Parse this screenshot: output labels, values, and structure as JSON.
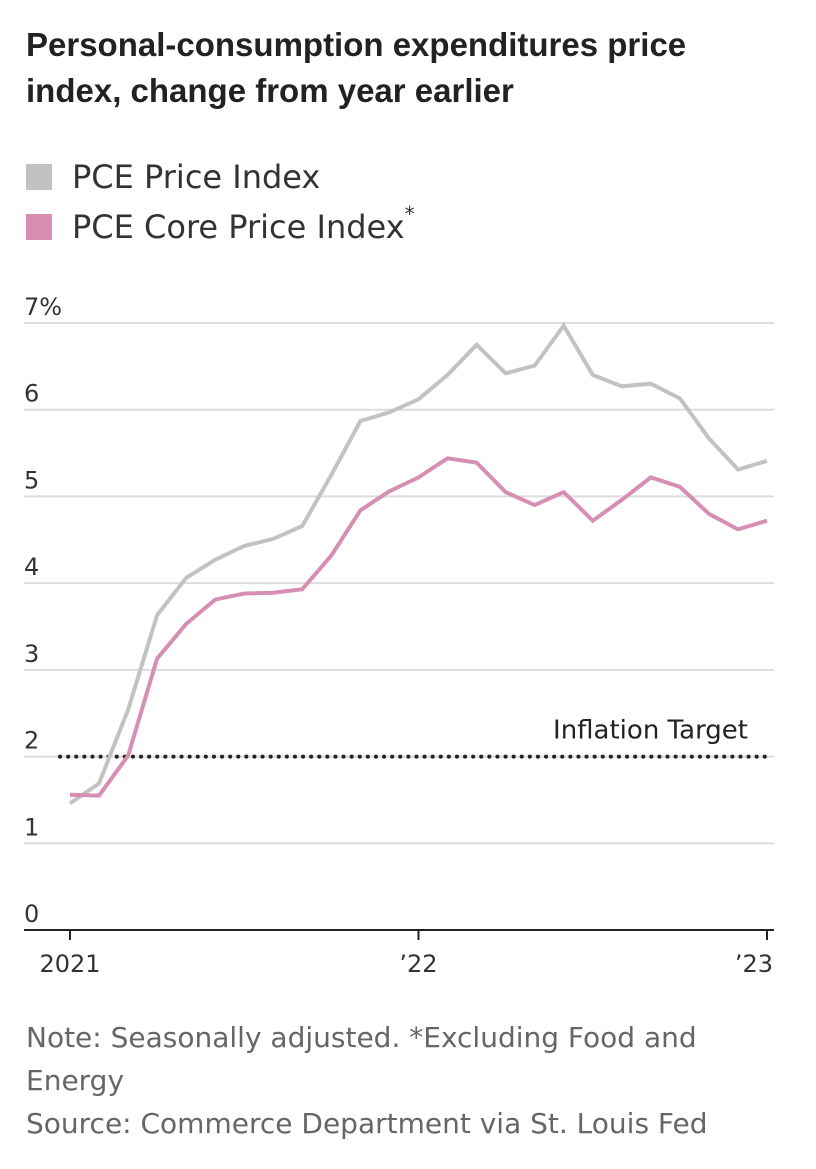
{
  "title": "Personal-consumption expenditures price index, change from year earlier",
  "legend": [
    {
      "label": "PCE Price Index",
      "suffix": "",
      "color": "#c2c2c2"
    },
    {
      "label": "PCE Core Price Index",
      "suffix": "*",
      "color": "#d68fb3"
    }
  ],
  "note": "Note: Seasonally adjusted. *Excluding Food and Energy",
  "source": "Source: Commerce Department via St. Louis Fed",
  "chart_data": {
    "type": "line",
    "title": "Personal-consumption expenditures price index, change from year earlier",
    "xlabel": "",
    "ylabel": "",
    "ylim": [
      0,
      7
    ],
    "yticks": [
      {
        "value": 7,
        "label": "7%"
      },
      {
        "value": 6,
        "label": "6"
      },
      {
        "value": 5,
        "label": "5"
      },
      {
        "value": 4,
        "label": "4"
      },
      {
        "value": 3,
        "label": "3"
      },
      {
        "value": 2,
        "label": "2"
      },
      {
        "value": 1,
        "label": "1"
      },
      {
        "value": 0,
        "label": "0"
      }
    ],
    "xticks": [
      {
        "index": 0,
        "label": "2021"
      },
      {
        "index": 12,
        "label": "’22"
      },
      {
        "index": 24,
        "label": "’23"
      }
    ],
    "grid": true,
    "x": [
      "2021-01",
      "2021-02",
      "2021-03",
      "2021-04",
      "2021-05",
      "2021-06",
      "2021-07",
      "2021-08",
      "2021-09",
      "2021-10",
      "2021-11",
      "2021-12",
      "2022-01",
      "2022-02",
      "2022-03",
      "2022-04",
      "2022-05",
      "2022-06",
      "2022-07",
      "2022-08",
      "2022-09",
      "2022-10",
      "2022-11",
      "2022-12",
      "2023-01"
    ],
    "series": [
      {
        "name": "PCE Price Index",
        "color": "#c2c2c2",
        "values": [
          1.46,
          1.69,
          2.54,
          3.63,
          4.06,
          4.27,
          4.43,
          4.51,
          4.66,
          5.25,
          5.87,
          5.97,
          6.12,
          6.4,
          6.75,
          6.42,
          6.51,
          6.97,
          6.4,
          6.27,
          6.3,
          6.13,
          5.67,
          5.31,
          5.41
        ]
      },
      {
        "name": "PCE Core Price Index",
        "color": "#d68fb3",
        "values": [
          1.56,
          1.55,
          2.01,
          3.13,
          3.53,
          3.81,
          3.88,
          3.89,
          3.93,
          4.32,
          4.84,
          5.06,
          5.22,
          5.44,
          5.39,
          5.05,
          4.9,
          5.05,
          4.72,
          4.96,
          5.22,
          5.11,
          4.8,
          4.62,
          4.72
        ]
      }
    ],
    "reference_line": {
      "value": 2,
      "label": "Inflation Target",
      "style": "dotted",
      "color": "#222222"
    }
  }
}
